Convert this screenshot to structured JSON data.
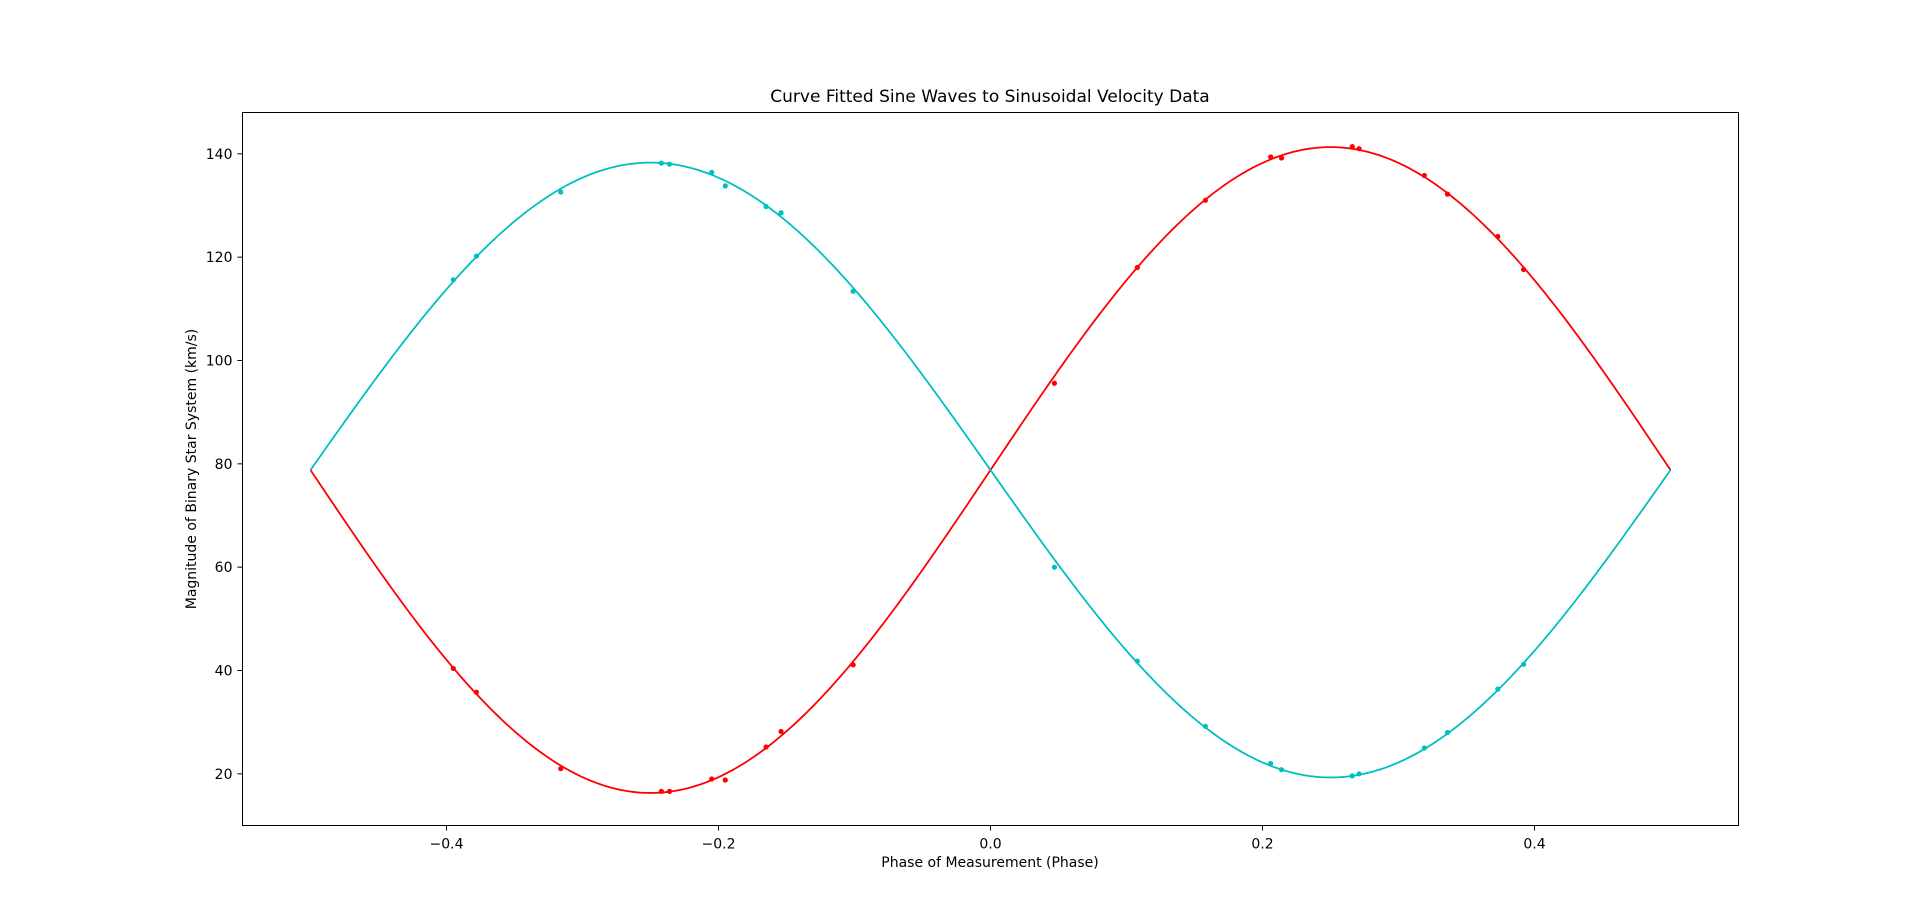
{
  "chart_data": {
    "type": "line",
    "title": "Curve Fitted Sine Waves to Sinusoidal Velocity Data",
    "xlabel": "Phase of Measurement (Phase)",
    "ylabel": "Magnitude of Binary Star System (km/s)",
    "xlim": [
      -0.55,
      0.55
    ],
    "ylim": [
      10,
      148
    ],
    "xticks": [
      -0.4,
      -0.2,
      0.0,
      0.2,
      0.4
    ],
    "xtick_labels": [
      "−0.4",
      "−0.2",
      "0.0",
      "0.2",
      "0.4"
    ],
    "yticks": [
      20,
      40,
      60,
      80,
      100,
      120,
      140
    ],
    "ytick_labels": [
      "20",
      "40",
      "60",
      "80",
      "100",
      "120",
      "140"
    ],
    "grid": false,
    "legend": "none",
    "series": [
      {
        "color": "#ff0000",
        "fit": {
          "mean": 78.8,
          "amplitude": 62.5,
          "phase_start": -0.5,
          "phase_end": 0.5
        },
        "points": [
          {
            "x": -0.395,
            "y": 40.4
          },
          {
            "x": -0.378,
            "y": 35.8
          },
          {
            "x": -0.316,
            "y": 21.0
          },
          {
            "x": -0.242,
            "y": 16.6
          },
          {
            "x": -0.236,
            "y": 16.6
          },
          {
            "x": -0.205,
            "y": 19.0
          },
          {
            "x": -0.195,
            "y": 18.8
          },
          {
            "x": -0.165,
            "y": 25.2
          },
          {
            "x": -0.154,
            "y": 28.2
          },
          {
            "x": -0.101,
            "y": 41.1
          },
          {
            "x": 0.047,
            "y": 95.6
          },
          {
            "x": 0.108,
            "y": 118.0
          },
          {
            "x": 0.158,
            "y": 131.0
          },
          {
            "x": 0.206,
            "y": 139.4
          },
          {
            "x": 0.214,
            "y": 139.2
          },
          {
            "x": 0.266,
            "y": 141.4
          },
          {
            "x": 0.271,
            "y": 141.0
          },
          {
            "x": 0.319,
            "y": 135.8
          },
          {
            "x": 0.336,
            "y": 132.2
          },
          {
            "x": 0.373,
            "y": 124.0
          },
          {
            "x": 0.392,
            "y": 117.6
          }
        ]
      },
      {
        "color": "#00bfbf",
        "fit": {
          "mean": 78.8,
          "amplitude": -59.5,
          "phase_start": -0.5,
          "phase_end": 0.5
        },
        "points": [
          {
            "x": -0.395,
            "y": 115.6
          },
          {
            "x": -0.378,
            "y": 120.2
          },
          {
            "x": -0.316,
            "y": 132.6
          },
          {
            "x": -0.242,
            "y": 138.2
          },
          {
            "x": -0.236,
            "y": 138.0
          },
          {
            "x": -0.205,
            "y": 136.4
          },
          {
            "x": -0.195,
            "y": 133.8
          },
          {
            "x": -0.165,
            "y": 129.8
          },
          {
            "x": -0.154,
            "y": 128.6
          },
          {
            "x": -0.101,
            "y": 113.4
          },
          {
            "x": 0.047,
            "y": 60.0
          },
          {
            "x": 0.108,
            "y": 41.8
          },
          {
            "x": 0.158,
            "y": 29.2
          },
          {
            "x": 0.206,
            "y": 22.0
          },
          {
            "x": 0.214,
            "y": 20.8
          },
          {
            "x": 0.266,
            "y": 19.6
          },
          {
            "x": 0.271,
            "y": 20.0
          },
          {
            "x": 0.319,
            "y": 25.0
          },
          {
            "x": 0.336,
            "y": 28.0
          },
          {
            "x": 0.373,
            "y": 36.4
          },
          {
            "x": 0.392,
            "y": 41.2
          }
        ]
      }
    ]
  }
}
